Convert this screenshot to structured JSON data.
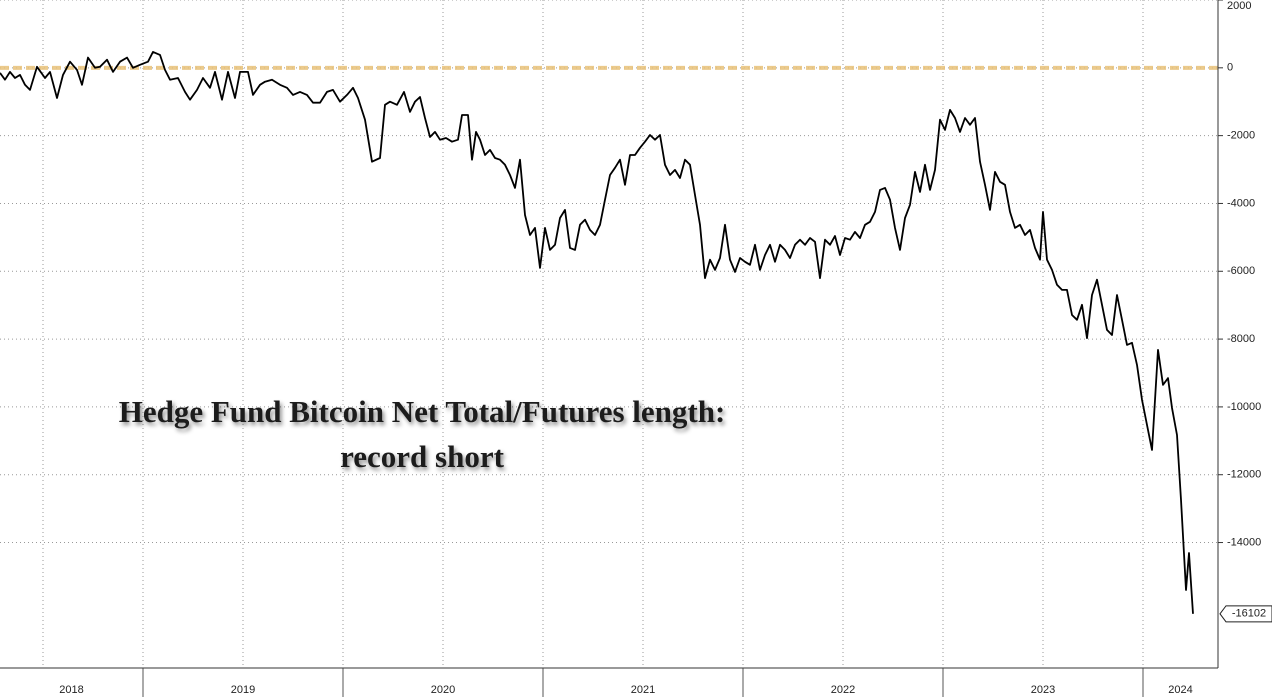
{
  "chart_data": {
    "type": "line",
    "annotations": [
      "Hedge Fund Bitcoin Net Total/Futures length:",
      "record short"
    ],
    "x": [
      2018.285,
      2018.31,
      2018.335,
      2018.36,
      2018.385,
      2018.41,
      2018.435,
      2018.47,
      2018.51,
      2018.535,
      2018.57,
      2018.6,
      2018.635,
      2018.67,
      2018.695,
      2018.725,
      2018.76,
      2018.785,
      2018.82,
      2018.85,
      2018.885,
      2018.92,
      2018.95,
      2018.985,
      2019.025,
      2019.05,
      2019.085,
      2019.11,
      2019.135,
      2019.175,
      2019.21,
      2019.235,
      2019.27,
      2019.3,
      2019.335,
      2019.36,
      2019.395,
      2019.425,
      2019.46,
      2019.485,
      2019.525,
      2019.55,
      2019.585,
      2019.61,
      2019.645,
      2019.685,
      2019.72,
      2019.75,
      2019.785,
      2019.82,
      2019.85,
      2019.885,
      2019.92,
      2019.95,
      2019.985,
      2020.02,
      2020.05,
      2020.075,
      2020.11,
      2020.145,
      2020.185,
      2020.21,
      2020.235,
      2020.27,
      2020.305,
      2020.335,
      2020.36,
      2020.385,
      2020.41,
      2020.435,
      2020.46,
      2020.485,
      2020.515,
      2020.545,
      2020.575,
      2020.595,
      2020.625,
      2020.645,
      2020.665,
      2020.685,
      2020.71,
      2020.735,
      2020.76,
      2020.785,
      2020.81,
      2020.835,
      2020.86,
      2020.885,
      2020.91,
      2020.935,
      2020.96,
      2020.985,
      2021.01,
      2021.035,
      2021.06,
      2021.085,
      2021.11,
      2021.135,
      2021.16,
      2021.185,
      2021.21,
      2021.235,
      2021.26,
      2021.285,
      2021.31,
      2021.335,
      2021.36,
      2021.385,
      2021.41,
      2021.435,
      2021.46,
      2021.485,
      2021.51,
      2021.535,
      2021.56,
      2021.585,
      2021.61,
      2021.635,
      2021.66,
      2021.685,
      2021.71,
      2021.735,
      2021.76,
      2021.785,
      2021.81,
      2021.835,
      2021.86,
      2021.885,
      2021.91,
      2021.935,
      2021.96,
      2021.985,
      2022.01,
      2022.035,
      2022.06,
      2022.085,
      2022.11,
      2022.135,
      2022.16,
      2022.185,
      2022.21,
      2022.235,
      2022.26,
      2022.285,
      2022.31,
      2022.335,
      2022.36,
      2022.385,
      2022.41,
      2022.435,
      2022.46,
      2022.485,
      2022.51,
      2022.535,
      2022.56,
      2022.585,
      2022.61,
      2022.635,
      2022.66,
      2022.685,
      2022.71,
      2022.735,
      2022.76,
      2022.785,
      2022.81,
      2022.835,
      2022.86,
      2022.885,
      2022.91,
      2022.935,
      2022.96,
      2022.985,
      2023.01,
      2023.035,
      2023.06,
      2023.085,
      2023.11,
      2023.135,
      2023.16,
      2023.185,
      2023.21,
      2023.235,
      2023.26,
      2023.285,
      2023.31,
      2023.335,
      2023.36,
      2023.385,
      2023.41,
      2023.435,
      2023.46,
      2023.485,
      2023.5,
      2023.52,
      2023.545,
      2023.57,
      2023.595,
      2023.62,
      2023.645,
      2023.67,
      2023.695,
      2023.72,
      2023.745,
      2023.77,
      2023.795,
      2023.82,
      2023.845,
      2023.87,
      2023.895,
      2023.92,
      2023.945,
      2023.97,
      2023.995,
      2024.02,
      2024.045,
      2024.075,
      2024.1,
      2024.125,
      2024.145,
      2024.17,
      2024.19,
      2024.215,
      2024.23,
      2024.25
    ],
    "series": [
      {
        "color": "#000000",
        "values": [
          -150,
          -350,
          -120,
          -300,
          -210,
          -500,
          -650,
          30,
          -300,
          -120,
          -890,
          -210,
          180,
          -60,
          -500,
          300,
          0,
          30,
          240,
          -120,
          180,
          300,
          0,
          90,
          180,
          470,
          380,
          -60,
          -350,
          -300,
          -710,
          -940,
          -650,
          -300,
          -590,
          -120,
          -940,
          -120,
          -890,
          -120,
          -120,
          -800,
          -500,
          -410,
          -350,
          -500,
          -590,
          -800,
          -710,
          -800,
          -1030,
          -1030,
          -710,
          -650,
          -1000,
          -800,
          -590,
          -890,
          -1530,
          -2770,
          -2660,
          -1090,
          -1000,
          -1090,
          -710,
          -1300,
          -1000,
          -860,
          -1480,
          -2040,
          -1890,
          -2120,
          -2070,
          -2180,
          -2120,
          -1390,
          -1390,
          -2710,
          -1890,
          -2120,
          -2570,
          -2420,
          -2660,
          -2710,
          -2860,
          -3160,
          -3540,
          -2710,
          -4340,
          -4930,
          -4720,
          -5900,
          -4720,
          -5370,
          -5220,
          -4430,
          -4190,
          -5310,
          -5370,
          -4630,
          -4480,
          -4780,
          -4930,
          -4630,
          -3890,
          -3160,
          -2950,
          -2710,
          -3450,
          -2570,
          -2570,
          -2360,
          -2180,
          -1980,
          -2120,
          -1980,
          -2860,
          -3160,
          -3010,
          -3250,
          -2710,
          -2860,
          -3750,
          -4630,
          -6200,
          -5660,
          -5960,
          -5610,
          -4630,
          -5660,
          -6020,
          -5610,
          -5720,
          -5810,
          -5220,
          -5960,
          -5520,
          -5220,
          -5720,
          -5220,
          -5370,
          -5610,
          -5220,
          -5070,
          -5220,
          -5020,
          -5130,
          -6200,
          -5070,
          -5220,
          -4960,
          -5520,
          -5020,
          -5070,
          -4840,
          -5020,
          -4630,
          -4540,
          -4250,
          -3600,
          -3540,
          -3890,
          -4720,
          -5370,
          -4430,
          -4040,
          -3070,
          -3660,
          -2860,
          -3600,
          -3010,
          -1530,
          -1830,
          -1240,
          -1480,
          -1890,
          -1480,
          -1680,
          -1480,
          -2770,
          -3450,
          -4190,
          -3070,
          -3360,
          -3450,
          -4250,
          -4720,
          -4630,
          -4930,
          -4780,
          -5310,
          -5660,
          -4250,
          -5660,
          -5960,
          -6400,
          -6550,
          -6550,
          -7290,
          -7430,
          -6990,
          -7970,
          -6700,
          -6250,
          -6990,
          -7730,
          -7880,
          -6700,
          -7430,
          -8170,
          -8110,
          -8760,
          -9790,
          -10530,
          -11270,
          -8320,
          -9350,
          -9150,
          -10030,
          -10830,
          -12740,
          -15400,
          -14310,
          -16102
        ]
      }
    ],
    "xlim": [
      2018.285,
      2024.375
    ],
    "xticks": [
      {
        "value": 2018,
        "label": "2018"
      },
      {
        "value": 2019,
        "label": "2019"
      },
      {
        "value": 2020,
        "label": "2020"
      },
      {
        "value": 2021,
        "label": "2021"
      },
      {
        "value": 2022,
        "label": "2022"
      },
      {
        "value": 2023,
        "label": "2023"
      },
      {
        "value": 2024,
        "label": "2024"
      }
    ],
    "ylim": [
      -17700,
      2000
    ],
    "yticks": [
      2000,
      0,
      -2000,
      -4000,
      -6000,
      -8000,
      -10000,
      -12000,
      -14000
    ],
    "reference_line": {
      "value": 0,
      "color": "#e8c178"
    },
    "grid": true
  }
}
